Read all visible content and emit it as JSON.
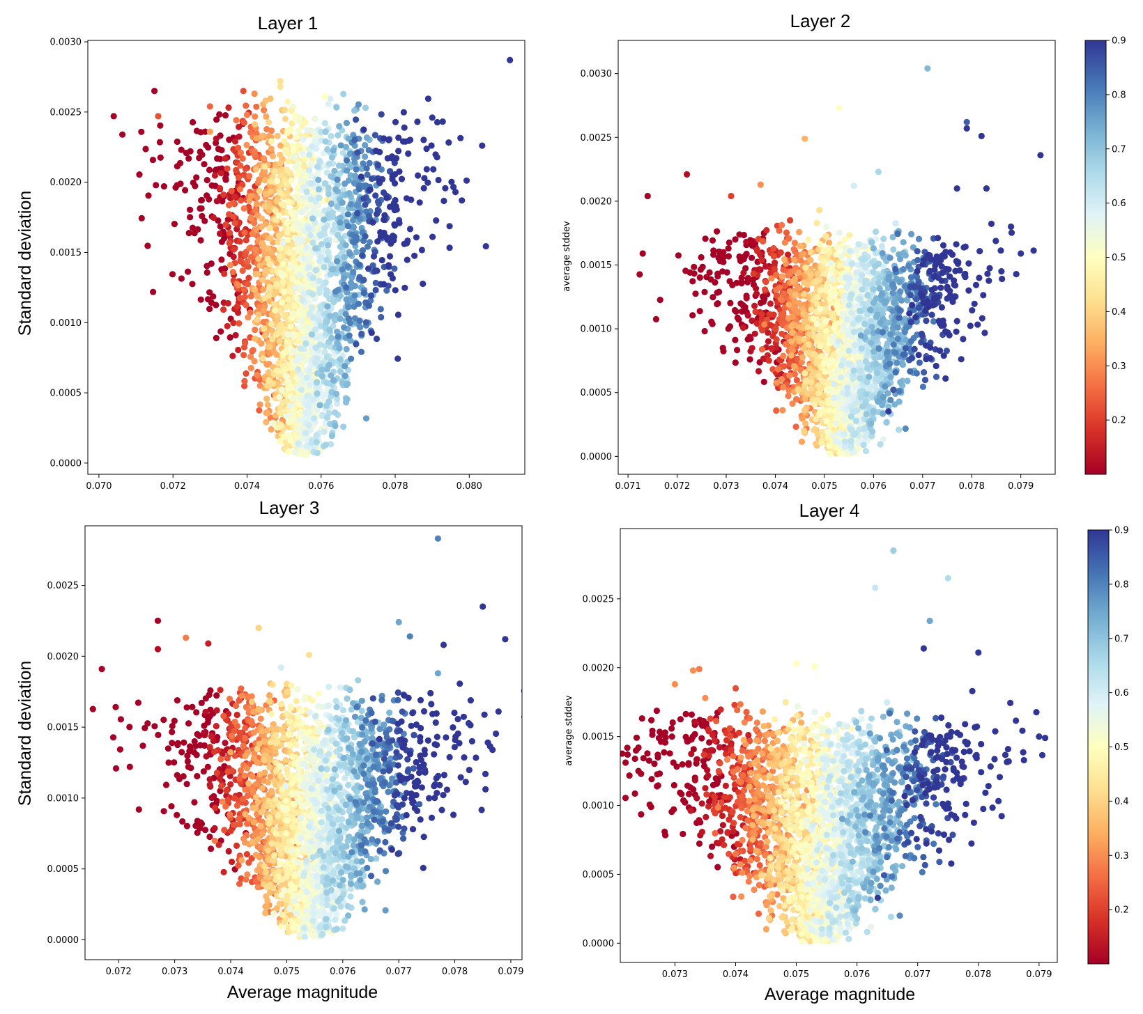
{
  "chart_data": [
    {
      "type": "scatter",
      "title": "Layer 1",
      "xlabel": "",
      "ylabel": "Standard deviation",
      "xlim": [
        0.0697,
        0.0815
      ],
      "ylim": [
        -8e-05,
        0.00301
      ],
      "xticks": [
        "0.070",
        "0.072",
        "0.074",
        "0.076",
        "0.078",
        "0.080"
      ],
      "yticks": [
        "0.0000",
        "0.0005",
        "0.0010",
        "0.0015",
        "0.0020",
        "0.0025",
        "0.0030"
      ],
      "color_encoding": "fraction 0.1–0.9, RdYlBu colormap",
      "cloud": {
        "vertex": [
          0.0755,
          5e-05
        ],
        "width_at_top": 0.0058,
        "height": 0.00225,
        "count": 2600
      },
      "points": [
        {
          "x": 0.0704,
          "y": 0.00247,
          "c": 0.1
        },
        {
          "x": 0.0715,
          "y": 0.00265,
          "c": 0.1
        },
        {
          "x": 0.0716,
          "y": 0.00247,
          "c": 0.22
        },
        {
          "x": 0.073,
          "y": 0.00254,
          "c": 0.25
        },
        {
          "x": 0.073,
          "y": 0.00236,
          "c": 0.32
        },
        {
          "x": 0.0739,
          "y": 0.00265,
          "c": 0.22
        },
        {
          "x": 0.074,
          "y": 0.00248,
          "c": 0.28
        },
        {
          "x": 0.0742,
          "y": 0.00263,
          "c": 0.3
        },
        {
          "x": 0.0745,
          "y": 0.00258,
          "c": 0.37
        },
        {
          "x": 0.0749,
          "y": 0.00272,
          "c": 0.42
        },
        {
          "x": 0.0749,
          "y": 0.00268,
          "c": 0.43
        },
        {
          "x": 0.0752,
          "y": 0.00251,
          "c": 0.46
        },
        {
          "x": 0.0761,
          "y": 0.00261,
          "c": 0.5
        },
        {
          "x": 0.0769,
          "y": 0.00251,
          "c": 0.7
        },
        {
          "x": 0.0772,
          "y": 0.00253,
          "c": 0.68
        },
        {
          "x": 0.0786,
          "y": 0.00243,
          "c": 0.9
        },
        {
          "x": 0.079,
          "y": 0.00246,
          "c": 0.9
        },
        {
          "x": 0.0798,
          "y": 0.00187,
          "c": 0.9
        },
        {
          "x": 0.0811,
          "y": 0.00287,
          "c": 0.9
        }
      ]
    },
    {
      "type": "scatter",
      "title": "Layer 2",
      "xlabel": "",
      "ylabel": "average stddev",
      "xlim": [
        0.0708,
        0.0797
      ],
      "ylim": [
        -0.00014,
        0.00326
      ],
      "xticks": [
        "0.071",
        "0.072",
        "0.073",
        "0.074",
        "0.075",
        "0.076",
        "0.077",
        "0.078",
        "0.079"
      ],
      "yticks": [
        "0.0000",
        "0.0005",
        "0.0010",
        "0.0015",
        "0.0020",
        "0.0025",
        "0.0030"
      ],
      "color_encoding": "fraction 0.1–0.9, RdYlBu colormap",
      "cloud": {
        "vertex": [
          0.0754,
          2e-05
        ],
        "width_at_top": 0.0048,
        "height": 0.00158,
        "count": 2600
      },
      "points": [
        {
          "x": 0.0714,
          "y": 0.00204,
          "c": 0.1
        },
        {
          "x": 0.0713,
          "y": 0.00159,
          "c": 0.1
        },
        {
          "x": 0.0722,
          "y": 0.00221,
          "c": 0.12
        },
        {
          "x": 0.0731,
          "y": 0.00204,
          "c": 0.2
        },
        {
          "x": 0.0737,
          "y": 0.00213,
          "c": 0.3
        },
        {
          "x": 0.0743,
          "y": 0.00185,
          "c": 0.2
        },
        {
          "x": 0.0746,
          "y": 0.00249,
          "c": 0.35
        },
        {
          "x": 0.0749,
          "y": 0.00193,
          "c": 0.42
        },
        {
          "x": 0.0753,
          "y": 0.00273,
          "c": 0.5
        },
        {
          "x": 0.0756,
          "y": 0.00212,
          "c": 0.6
        },
        {
          "x": 0.0761,
          "y": 0.00223,
          "c": 0.66
        },
        {
          "x": 0.0771,
          "y": 0.00304,
          "c": 0.72
        },
        {
          "x": 0.0777,
          "y": 0.0021,
          "c": 0.9
        },
        {
          "x": 0.0779,
          "y": 0.00262,
          "c": 0.85
        },
        {
          "x": 0.0779,
          "y": 0.00257,
          "c": 0.9
        },
        {
          "x": 0.0782,
          "y": 0.00251,
          "c": 0.9
        },
        {
          "x": 0.0783,
          "y": 0.0021,
          "c": 0.9
        },
        {
          "x": 0.0788,
          "y": 0.0018,
          "c": 0.9
        },
        {
          "x": 0.079,
          "y": 0.00159,
          "c": 0.9
        },
        {
          "x": 0.0794,
          "y": 0.00236,
          "c": 0.9
        }
      ]
    },
    {
      "type": "scatter",
      "title": "Layer 3",
      "xlabel": "Average magnitude",
      "ylabel": "Standard deviation",
      "xlim": [
        0.0714,
        0.0792
      ],
      "ylim": [
        -0.00014,
        0.00292
      ],
      "xticks": [
        "0.072",
        "0.073",
        "0.074",
        "0.075",
        "0.076",
        "0.077",
        "0.078",
        "0.079"
      ],
      "yticks": [
        "0.0000",
        "0.0005",
        "0.0010",
        "0.0015",
        "0.0020",
        "0.0025"
      ],
      "color_encoding": "fraction 0.1–0.9, RdYlBu colormap",
      "cloud": {
        "vertex": [
          0.0754,
          2e-05
        ],
        "width_at_top": 0.0046,
        "height": 0.00158,
        "count": 2600
      },
      "points": [
        {
          "x": 0.0717,
          "y": 0.00191,
          "c": 0.1
        },
        {
          "x": 0.0722,
          "y": 0.00122,
          "c": 0.1
        },
        {
          "x": 0.0727,
          "y": 0.00225,
          "c": 0.1
        },
        {
          "x": 0.0727,
          "y": 0.00205,
          "c": 0.12
        },
        {
          "x": 0.0732,
          "y": 0.00213,
          "c": 0.28
        },
        {
          "x": 0.0736,
          "y": 0.00209,
          "c": 0.15
        },
        {
          "x": 0.0745,
          "y": 0.0022,
          "c": 0.4
        },
        {
          "x": 0.0749,
          "y": 0.00192,
          "c": 0.6
        },
        {
          "x": 0.0754,
          "y": 0.00201,
          "c": 0.42
        },
        {
          "x": 0.077,
          "y": 0.00224,
          "c": 0.75
        },
        {
          "x": 0.0772,
          "y": 0.00214,
          "c": 0.8
        },
        {
          "x": 0.0777,
          "y": 0.00283,
          "c": 0.8
        },
        {
          "x": 0.0777,
          "y": 0.00188,
          "c": 0.75
        },
        {
          "x": 0.0778,
          "y": 0.00208,
          "c": 0.9
        },
        {
          "x": 0.0785,
          "y": 0.00235,
          "c": 0.9
        },
        {
          "x": 0.0789,
          "y": 0.00212,
          "c": 0.9
        }
      ]
    },
    {
      "type": "scatter",
      "title": "Layer 4",
      "xlabel": "Average magnitude",
      "ylabel": "average stddev",
      "xlim": [
        0.0721,
        0.0793
      ],
      "ylim": [
        -0.00014,
        0.00301
      ],
      "xticks": [
        "0.073",
        "0.074",
        "0.075",
        "0.076",
        "0.077",
        "0.078",
        "0.079"
      ],
      "yticks": [
        "0.0000",
        "0.0005",
        "0.0010",
        "0.0015",
        "0.0020",
        "0.0025"
      ],
      "color_encoding": "fraction 0.1–0.9, RdYlBu colormap",
      "cloud": {
        "vertex": [
          0.0754,
          1e-05
        ],
        "width_at_top": 0.005,
        "height": 0.00152,
        "count": 2600
      },
      "points": [
        {
          "x": 0.0724,
          "y": 0.00125,
          "c": 0.1
        },
        {
          "x": 0.073,
          "y": 0.00188,
          "c": 0.3
        },
        {
          "x": 0.0733,
          "y": 0.00198,
          "c": 0.3
        },
        {
          "x": 0.0734,
          "y": 0.00199,
          "c": 0.28
        },
        {
          "x": 0.0735,
          "y": 0.00178,
          "c": 0.3
        },
        {
          "x": 0.074,
          "y": 0.00185,
          "c": 0.22
        },
        {
          "x": 0.075,
          "y": 0.00203,
          "c": 0.5
        },
        {
          "x": 0.0753,
          "y": 0.00201,
          "c": 0.5
        },
        {
          "x": 0.0763,
          "y": 0.00258,
          "c": 0.62
        },
        {
          "x": 0.0766,
          "y": 0.00285,
          "c": 0.68
        },
        {
          "x": 0.0771,
          "y": 0.00214,
          "c": 0.9
        },
        {
          "x": 0.0772,
          "y": 0.00234,
          "c": 0.75
        },
        {
          "x": 0.0775,
          "y": 0.00265,
          "c": 0.65
        },
        {
          "x": 0.078,
          "y": 0.00211,
          "c": 0.9
        },
        {
          "x": 0.0779,
          "y": 0.00183,
          "c": 0.9
        },
        {
          "x": 0.0785,
          "y": 0.00132,
          "c": 0.9
        },
        {
          "x": 0.079,
          "y": 0.0015,
          "c": 0.9
        },
        {
          "x": 0.0791,
          "y": 0.00149,
          "c": 0.9
        }
      ]
    }
  ],
  "colorbars": [
    {
      "label_ticks": [
        "0.2",
        "0.3",
        "0.4",
        "0.5",
        "0.6",
        "0.7",
        "0.8",
        "0.9"
      ],
      "range": [
        0.1,
        0.9
      ]
    },
    {
      "label_ticks": [
        "0.2",
        "0.3",
        "0.4",
        "0.5",
        "0.6",
        "0.7",
        "0.8",
        "0.9"
      ],
      "range": [
        0.1,
        0.9
      ]
    }
  ],
  "colors": {
    "colormap": [
      "#a50026",
      "#d73027",
      "#f46d43",
      "#fdae61",
      "#fee090",
      "#ffffbf",
      "#e0f3f8",
      "#abd9e9",
      "#74add1",
      "#4575b4",
      "#313695"
    ]
  }
}
